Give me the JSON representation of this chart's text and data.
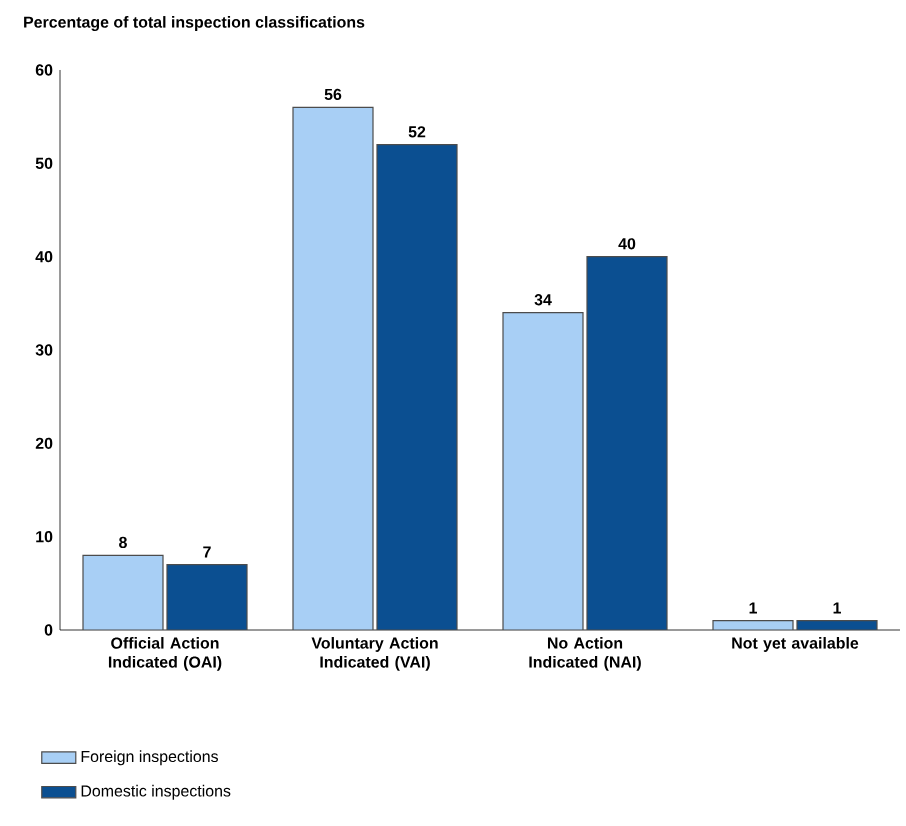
{
  "chart_data": {
    "type": "bar",
    "title": "Percentage of total inspection classifications",
    "categories": [
      "Official Action Indicated (OAI)",
      "Voluntary Action Indicated (VAI)",
      "No Action Indicated (NAI)",
      "Not yet available"
    ],
    "series": [
      {
        "name": "Foreign inspections",
        "color": "#a8cff5",
        "values": [
          8,
          56,
          34,
          1
        ]
      },
      {
        "name": "Domestic inspections",
        "color": "#0b4f91",
        "values": [
          7,
          52,
          40,
          1
        ]
      }
    ],
    "ylim": [
      0,
      60
    ],
    "yticks": [
      0,
      10,
      20,
      30,
      40,
      50,
      60
    ],
    "data_labels": true,
    "legend": "bottom left"
  }
}
